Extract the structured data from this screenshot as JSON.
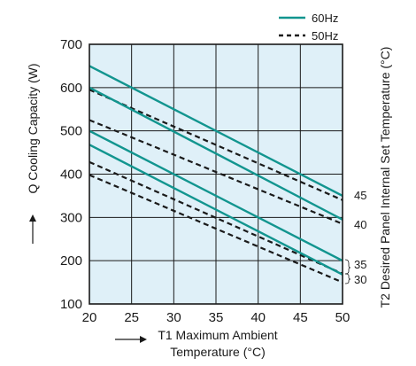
{
  "chart_data": {
    "type": "line",
    "xlabel_line1": "T1 Maximum Ambient",
    "xlabel_line2": "Temperature (°C)",
    "ylabel": "Q Cooling Capacity (W)",
    "y2label": "T2 Desired Panel Internal Set Temperature (°C)",
    "xlim": [
      20,
      50
    ],
    "ylim": [
      100,
      700
    ],
    "xticks": [
      20,
      25,
      30,
      35,
      40,
      45,
      50
    ],
    "yticks": [
      100,
      200,
      300,
      400,
      500,
      600,
      700
    ],
    "grid": true,
    "legend": {
      "placement": "top-right",
      "entries": [
        {
          "label": "60Hz",
          "style": "solid",
          "color": "#12958f"
        },
        {
          "label": "50Hz",
          "style": "dashed",
          "color": "#1a1a1a"
        }
      ]
    },
    "plot_background": "#dff0f8",
    "series": [
      {
        "group": "45",
        "type": "60Hz",
        "x": [
          20,
          50
        ],
        "y": [
          650,
          350
        ]
      },
      {
        "group": "45",
        "type": "50Hz",
        "x": [
          20,
          50
        ],
        "y": [
          595,
          340
        ]
      },
      {
        "group": "40",
        "type": "60Hz",
        "x": [
          20,
          50
        ],
        "y": [
          600,
          295
        ]
      },
      {
        "group": "40",
        "type": "50Hz",
        "x": [
          20,
          50
        ],
        "y": [
          525,
          285
        ]
      },
      {
        "group": "35",
        "type": "60Hz",
        "x": [
          20,
          50
        ],
        "y": [
          500,
          200
        ]
      },
      {
        "group": "35",
        "type": "50Hz",
        "x": [
          20,
          50
        ],
        "y": [
          428,
          170
        ]
      },
      {
        "group": "30",
        "type": "60Hz",
        "x": [
          20,
          50
        ],
        "y": [
          468,
          168
        ]
      },
      {
        "group": "30",
        "type": "50Hz",
        "x": [
          20,
          50
        ],
        "y": [
          398,
          150
        ]
      }
    ],
    "t2_labels": [
      "45",
      "40",
      "35",
      "30"
    ]
  }
}
